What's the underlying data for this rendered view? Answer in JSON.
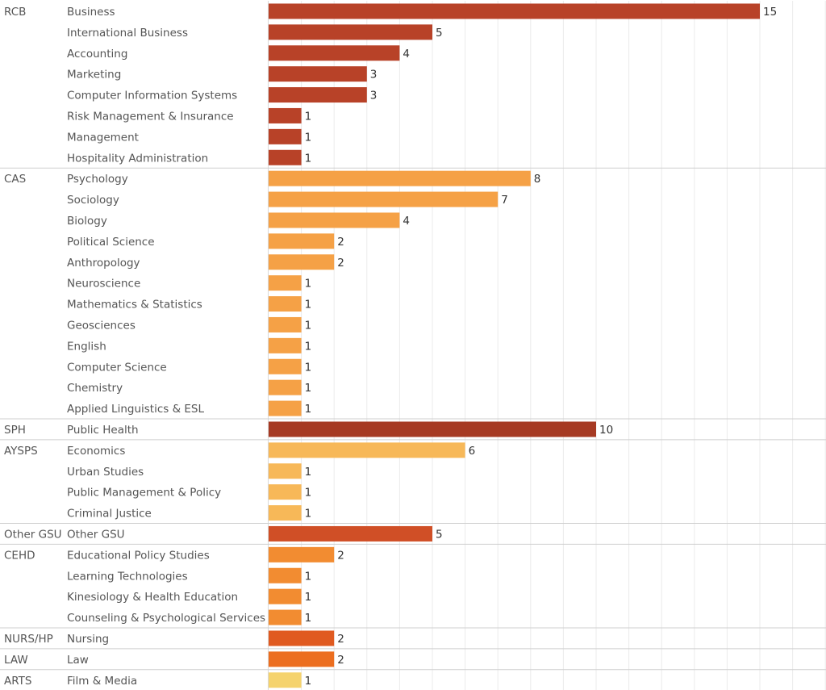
{
  "chart_data": {
    "type": "bar",
    "orientation": "horizontal",
    "xlim": [
      0,
      17
    ],
    "grid": true,
    "groups": [
      {
        "college": "RCB",
        "color": "#b84228",
        "items": [
          {
            "major": "Business",
            "value": 15
          },
          {
            "major": "International Business",
            "value": 5
          },
          {
            "major": "Accounting",
            "value": 4
          },
          {
            "major": "Marketing",
            "value": 3
          },
          {
            "major": "Computer Information Systems",
            "value": 3
          },
          {
            "major": "Risk Management & Insurance",
            "value": 1
          },
          {
            "major": "Management",
            "value": 1
          },
          {
            "major": "Hospitality Administration",
            "value": 1
          }
        ]
      },
      {
        "college": "CAS",
        "color": "#f5a146",
        "items": [
          {
            "major": "Psychology",
            "value": 8
          },
          {
            "major": "Sociology",
            "value": 7
          },
          {
            "major": "Biology",
            "value": 4
          },
          {
            "major": "Political Science",
            "value": 2
          },
          {
            "major": "Anthropology",
            "value": 2
          },
          {
            "major": "Neuroscience",
            "value": 1
          },
          {
            "major": "Mathematics & Statistics",
            "value": 1
          },
          {
            "major": "Geosciences",
            "value": 1
          },
          {
            "major": "English",
            "value": 1
          },
          {
            "major": "Computer Science",
            "value": 1
          },
          {
            "major": "Chemistry",
            "value": 1
          },
          {
            "major": "Applied Linguistics & ESL",
            "value": 1
          }
        ]
      },
      {
        "college": "SPH",
        "color": "#a63a23",
        "items": [
          {
            "major": "Public Health",
            "value": 10
          }
        ]
      },
      {
        "college": "AYSPS",
        "color": "#f7b858",
        "items": [
          {
            "major": "Economics",
            "value": 6
          },
          {
            "major": "Urban Studies",
            "value": 1
          },
          {
            "major": "Public Management & Policy",
            "value": 1
          },
          {
            "major": "Criminal Justice",
            "value": 1
          }
        ]
      },
      {
        "college": "Other GSU",
        "color": "#d04f26",
        "items": [
          {
            "major": "Other GSU",
            "value": 5
          }
        ]
      },
      {
        "college": "CEHD",
        "color": "#f28c31",
        "items": [
          {
            "major": "Educational Policy Studies",
            "value": 2
          },
          {
            "major": "Learning Technologies",
            "value": 1
          },
          {
            "major": "Kinesiology & Health Education",
            "value": 1
          },
          {
            "major": "Counseling & Psychological Services",
            "value": 1
          }
        ]
      },
      {
        "college": "NURS/HP",
        "color": "#e05a20",
        "items": [
          {
            "major": "Nursing",
            "value": 2
          }
        ]
      },
      {
        "college": "LAW",
        "color": "#ec6e1f",
        "items": [
          {
            "major": "Law",
            "value": 2
          }
        ]
      },
      {
        "college": "ARTS",
        "color": "#f5d36d",
        "items": [
          {
            "major": "Film & Media",
            "value": 1
          }
        ]
      }
    ]
  }
}
